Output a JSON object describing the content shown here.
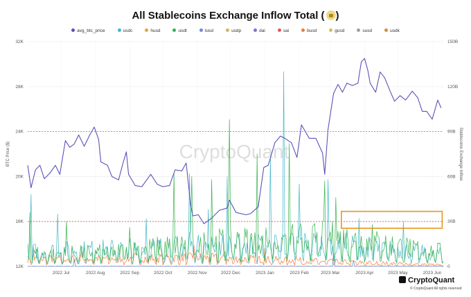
{
  "title": "All Stablecoins Exchange Inflow Total",
  "colors": {
    "avg_btc_price": "#5a52b8",
    "usdc": "#3fb6c8",
    "busd": "#f07b3a",
    "usdt": "#37b24d",
    "tusd": "#6f8bd6",
    "highlight": "#e8961a",
    "redline": "#e05a5a"
  },
  "chart_data": {
    "type": "line",
    "title": "All Stablecoins Exchange Inflow Total",
    "legend_position": "top",
    "legend": [
      "avg_btc_price",
      "usdc",
      "husd",
      "usdt",
      "tusd",
      "usdp",
      "dai",
      "sai",
      "busd",
      "gusd",
      "susd",
      "usdk"
    ],
    "legend_colors": [
      "#5a52b8",
      "#3fb6c8",
      "#e6a23c",
      "#37b24d",
      "#6f8bd6",
      "#d4b36c",
      "#8e6ad0",
      "#e05a5a",
      "#f07b3a",
      "#c9c35a",
      "#a0a0a0",
      "#d98a46"
    ],
    "y_left": {
      "label": "BTC Price ($)",
      "ticks": [
        "12K",
        "16K",
        "20K",
        "24K",
        "28K",
        "32K"
      ],
      "range": [
        12000,
        32000
      ]
    },
    "y_right": {
      "label": "Stablecoins Exchange Inflow",
      "ticks": [
        "0",
        "30B",
        "60B",
        "90B",
        "120B",
        "150B"
      ],
      "range": [
        0,
        150000000000
      ]
    },
    "x_ticks": [
      "2022 Jul",
      "2022 Aug",
      "2022 Sep",
      "2022 Oct",
      "2022 Nov",
      "2022 Dec",
      "2023 Jan",
      "2023 Feb",
      "2023 Mar",
      "2023 Apr",
      "2023 May",
      "2023 Jun"
    ],
    "grid": true,
    "x_range": [
      "2022-06-15",
      "2023-06-25"
    ],
    "btc_price": {
      "name": "avg_btc_price",
      "points": [
        [
          "2022-06-15",
          21000
        ],
        [
          "2022-06-18",
          19000
        ],
        [
          "2022-06-22",
          20600
        ],
        [
          "2022-06-26",
          21000
        ],
        [
          "2022-06-30",
          19800
        ],
        [
          "2022-07-05",
          20300
        ],
        [
          "2022-07-10",
          21000
        ],
        [
          "2022-07-14",
          20200
        ],
        [
          "2022-07-19",
          23200
        ],
        [
          "2022-07-23",
          22600
        ],
        [
          "2022-07-27",
          22900
        ],
        [
          "2022-07-31",
          23700
        ],
        [
          "2022-08-05",
          22700
        ],
        [
          "2022-08-10",
          23700
        ],
        [
          "2022-08-14",
          24400
        ],
        [
          "2022-08-18",
          23300
        ],
        [
          "2022-08-20",
          21300
        ],
        [
          "2022-08-26",
          21000
        ],
        [
          "2022-08-30",
          20000
        ],
        [
          "2022-09-05",
          19700
        ],
        [
          "2022-09-09",
          21200
        ],
        [
          "2022-09-12",
          22200
        ],
        [
          "2022-09-14",
          20200
        ],
        [
          "2022-09-20",
          19200
        ],
        [
          "2022-09-26",
          19100
        ],
        [
          "2022-10-04",
          20200
        ],
        [
          "2022-10-10",
          19300
        ],
        [
          "2022-10-15",
          19100
        ],
        [
          "2022-10-21",
          19200
        ],
        [
          "2022-10-26",
          20600
        ],
        [
          "2022-11-01",
          20500
        ],
        [
          "2022-11-05",
          21200
        ],
        [
          "2022-11-09",
          17500
        ],
        [
          "2022-11-11",
          16500
        ],
        [
          "2022-11-16",
          16600
        ],
        [
          "2022-11-21",
          15800
        ],
        [
          "2022-11-28",
          16300
        ],
        [
          "2022-12-05",
          17000
        ],
        [
          "2022-12-12",
          17200
        ],
        [
          "2022-12-14",
          17900
        ],
        [
          "2022-12-20",
          16800
        ],
        [
          "2022-12-29",
          16600
        ],
        [
          "2023-01-02",
          16700
        ],
        [
          "2023-01-09",
          17300
        ],
        [
          "2023-01-14",
          20800
        ],
        [
          "2023-01-18",
          21000
        ],
        [
          "2023-01-24",
          23000
        ],
        [
          "2023-01-29",
          23600
        ],
        [
          "2023-02-02",
          23400
        ],
        [
          "2023-02-08",
          23000
        ],
        [
          "2023-02-13",
          21700
        ],
        [
          "2023-02-17",
          24600
        ],
        [
          "2023-02-24",
          23400
        ],
        [
          "2023-03-02",
          23400
        ],
        [
          "2023-03-08",
          22100
        ],
        [
          "2023-03-10",
          20200
        ],
        [
          "2023-03-13",
          24200
        ],
        [
          "2023-03-18",
          27400
        ],
        [
          "2023-03-22",
          28200
        ],
        [
          "2023-03-26",
          27500
        ],
        [
          "2023-03-30",
          28300
        ],
        [
          "2023-04-04",
          28100
        ],
        [
          "2023-04-09",
          28300
        ],
        [
          "2023-04-12",
          30200
        ],
        [
          "2023-04-15",
          30500
        ],
        [
          "2023-04-18",
          29400
        ],
        [
          "2023-04-20",
          28300
        ],
        [
          "2023-04-25",
          27500
        ],
        [
          "2023-04-29",
          29300
        ],
        [
          "2023-05-03",
          28800
        ],
        [
          "2023-05-08",
          27600
        ],
        [
          "2023-05-12",
          26700
        ],
        [
          "2023-05-17",
          27200
        ],
        [
          "2023-05-22",
          26800
        ],
        [
          "2023-05-28",
          27600
        ],
        [
          "2023-06-02",
          27000
        ],
        [
          "2023-06-06",
          25800
        ],
        [
          "2023-06-10",
          25800
        ],
        [
          "2023-06-15",
          25100
        ],
        [
          "2023-06-20",
          26800
        ],
        [
          "2023-06-23",
          26100
        ]
      ]
    },
    "series": [
      {
        "name": "usdc",
        "base": [
          [
            "2022-06-15",
            10000000000
          ],
          [
            "2022-09-01",
            12000000000
          ],
          [
            "2022-12-01",
            14000000000
          ],
          [
            "2023-03-10",
            16000000000
          ],
          [
            "2023-06-25",
            8000000000
          ]
        ],
        "spikes": [
          [
            "2022-06-18",
            48000000000
          ],
          [
            "2022-07-12",
            35000000000
          ],
          [
            "2022-09-30",
            32000000000
          ],
          [
            "2022-11-08",
            62000000000
          ],
          [
            "2022-11-25",
            38000000000
          ],
          [
            "2022-12-12",
            60000000000
          ],
          [
            "2023-01-20",
            72000000000
          ],
          [
            "2023-02-01",
            130000000000
          ],
          [
            "2023-02-15",
            55000000000
          ],
          [
            "2023-03-13",
            58000000000
          ],
          [
            "2023-04-10",
            32000000000
          ],
          [
            "2023-05-20",
            30000000000
          ]
        ]
      },
      {
        "name": "usdt",
        "base": [
          [
            "2022-06-15",
            8000000000
          ],
          [
            "2022-09-01",
            10000000000
          ],
          [
            "2022-11-15",
            16000000000
          ],
          [
            "2023-03-15",
            20000000000
          ],
          [
            "2023-06-25",
            10000000000
          ]
        ],
        "spikes": [
          [
            "2022-06-17",
            36000000000
          ],
          [
            "2022-07-20",
            30000000000
          ],
          [
            "2022-09-15",
            26000000000
          ],
          [
            "2022-10-25",
            62000000000
          ],
          [
            "2022-11-10",
            60000000000
          ],
          [
            "2022-11-28",
            58000000000
          ],
          [
            "2022-12-14",
            98000000000
          ],
          [
            "2023-01-08",
            75000000000
          ],
          [
            "2023-02-06",
            82000000000
          ],
          [
            "2023-03-10",
            57000000000
          ],
          [
            "2023-03-20",
            46000000000
          ],
          [
            "2023-04-22",
            28000000000
          ]
        ]
      },
      {
        "name": "busd",
        "base": [
          [
            "2022-06-15",
            5000000000
          ],
          [
            "2022-11-15",
            6000000000
          ],
          [
            "2023-02-15",
            4000000000
          ],
          [
            "2023-06-25",
            1000000000
          ]
        ],
        "spikes": [
          [
            "2022-06-20",
            14000000000
          ],
          [
            "2022-08-03",
            10000000000
          ],
          [
            "2022-09-20",
            9000000000
          ],
          [
            "2022-11-12",
            14000000000
          ],
          [
            "2022-12-10",
            10000000000
          ],
          [
            "2023-01-15",
            12000000000
          ],
          [
            "2023-02-12",
            8000000000
          ]
        ]
      },
      {
        "name": "tusd",
        "base": [
          [
            "2022-06-15",
            200000000
          ],
          [
            "2023-06-25",
            300000000
          ]
        ],
        "spikes": [
          [
            "2022-07-27",
            5000000000
          ],
          [
            "2023-03-18",
            9000000000
          ],
          [
            "2023-04-05",
            4000000000
          ]
        ]
      }
    ],
    "reference_lines": [
      16000,
      24000
    ],
    "highlight_box": {
      "x_range": [
        "2023-03-25",
        "2023-06-24"
      ],
      "y_range": [
        15400,
        16900
      ]
    }
  },
  "logo": "CryptoQuant",
  "watermark": "CryptoQuant",
  "copyright": "© CryptoQuant All rights reserved"
}
